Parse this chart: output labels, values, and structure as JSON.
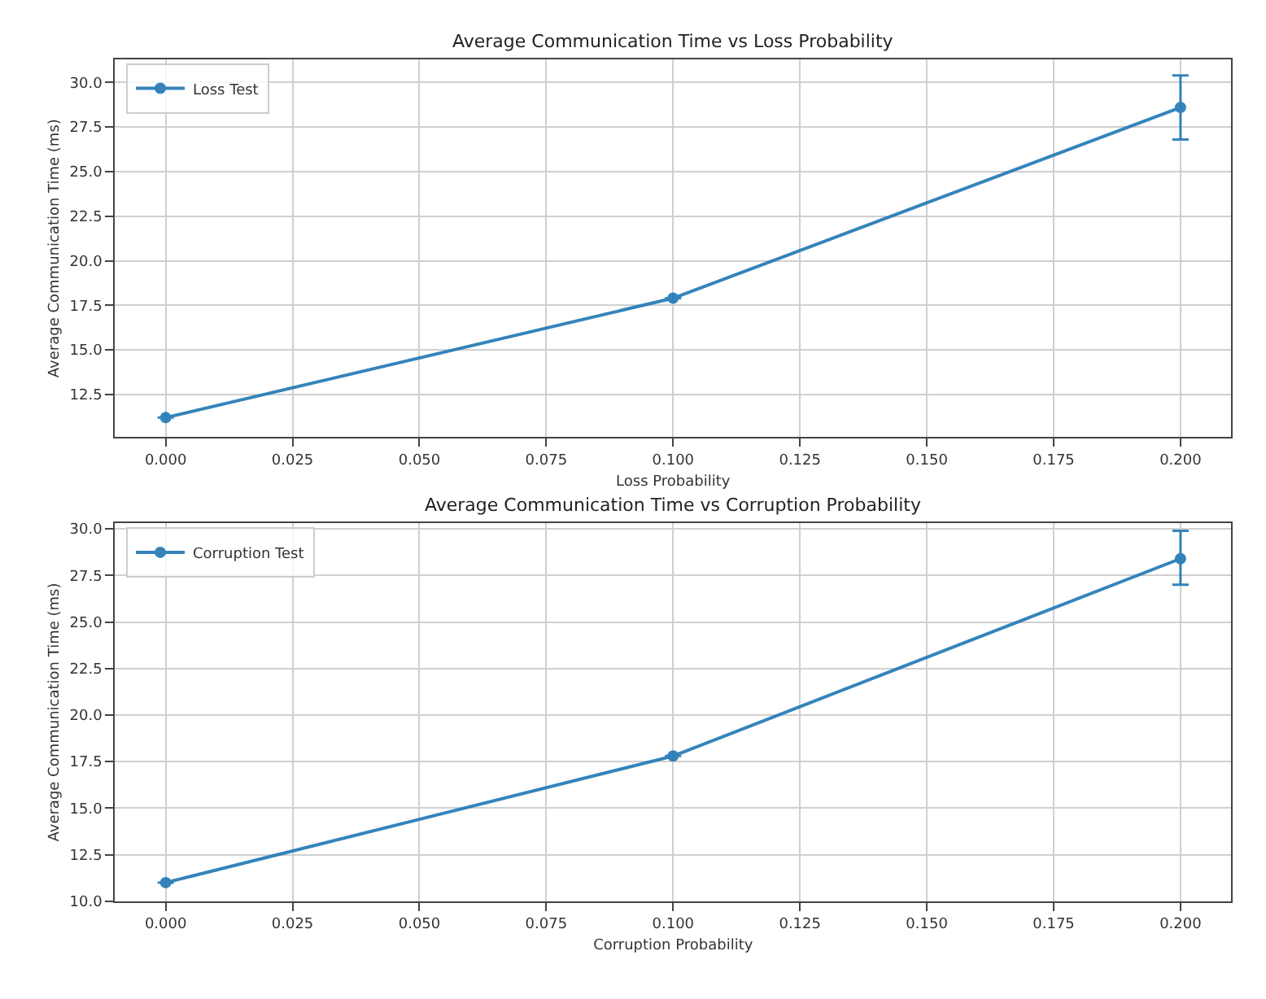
{
  "chart_data": [
    {
      "type": "line",
      "title": "Average Communication Time vs Loss Probability",
      "xlabel": "Loss Probability",
      "ylabel": "Average Communication Time (ms)",
      "x": [
        0.0,
        0.1,
        0.2
      ],
      "series": [
        {
          "name": "Loss Test",
          "color": "#1f77b4",
          "values": [
            11.2,
            17.9,
            28.6
          ],
          "errors": [
            null,
            null,
            [
              26.8,
              30.4
            ]
          ]
        }
      ],
      "xlim": [
        -0.01,
        0.21
      ],
      "xticks": [
        {
          "value": 0,
          "label": "0.000"
        },
        0.025,
        {
          "value": 0.05,
          "label": "0.050"
        },
        0.075,
        {
          "value": 0.1,
          "label": "0.100"
        },
        0.125,
        {
          "value": 0.15,
          "label": "0.150"
        },
        0.175,
        {
          "value": 0.2,
          "label": "0.200"
        }
      ],
      "ylim": [
        10.1,
        31.3
      ],
      "yticks": [
        12.5,
        {
          "value": 15,
          "label": "15.0"
        },
        17.5,
        {
          "value": 20,
          "label": "20.0"
        },
        22.5,
        {
          "value": 25,
          "label": "25.0"
        },
        27.5,
        {
          "value": 30,
          "label": "30.0"
        }
      ],
      "grid": true,
      "legend": "top left",
      "marker": "circle",
      "line_style": "solid"
    },
    {
      "type": "line",
      "title": "Average Communication Time vs Corruption Probability",
      "xlabel": "Corruption Probability",
      "ylabel": "Average Communication Time (ms)",
      "x": [
        0.0,
        0.1,
        0.2
      ],
      "series": [
        {
          "name": "Corruption Test",
          "color": "#1f77b4",
          "values": [
            11.0,
            17.8,
            28.4
          ],
          "errors": [
            null,
            null,
            [
              27.0,
              29.9
            ]
          ]
        }
      ],
      "xlim": [
        -0.01,
        0.21
      ],
      "xticks": [
        {
          "value": 0,
          "label": "0.000"
        },
        0.025,
        {
          "value": 0.05,
          "label": "0.050"
        },
        0.075,
        {
          "value": 0.1,
          "label": "0.100"
        },
        0.125,
        {
          "value": 0.15,
          "label": "0.150"
        },
        0.175,
        {
          "value": 0.2,
          "label": "0.200"
        }
      ],
      "ylim": [
        10.0,
        30.3
      ],
      "yticks": [
        {
          "value": 10,
          "label": "10.0"
        },
        12.5,
        {
          "value": 15,
          "label": "15.0"
        },
        17.5,
        {
          "value": 20,
          "label": "20.0"
        },
        22.5,
        {
          "value": 25,
          "label": "25.0"
        },
        27.5,
        {
          "value": 30,
          "label": "30.0"
        }
      ],
      "grid": true,
      "legend": "top left",
      "marker": "circle",
      "line_style": "solid"
    }
  ]
}
